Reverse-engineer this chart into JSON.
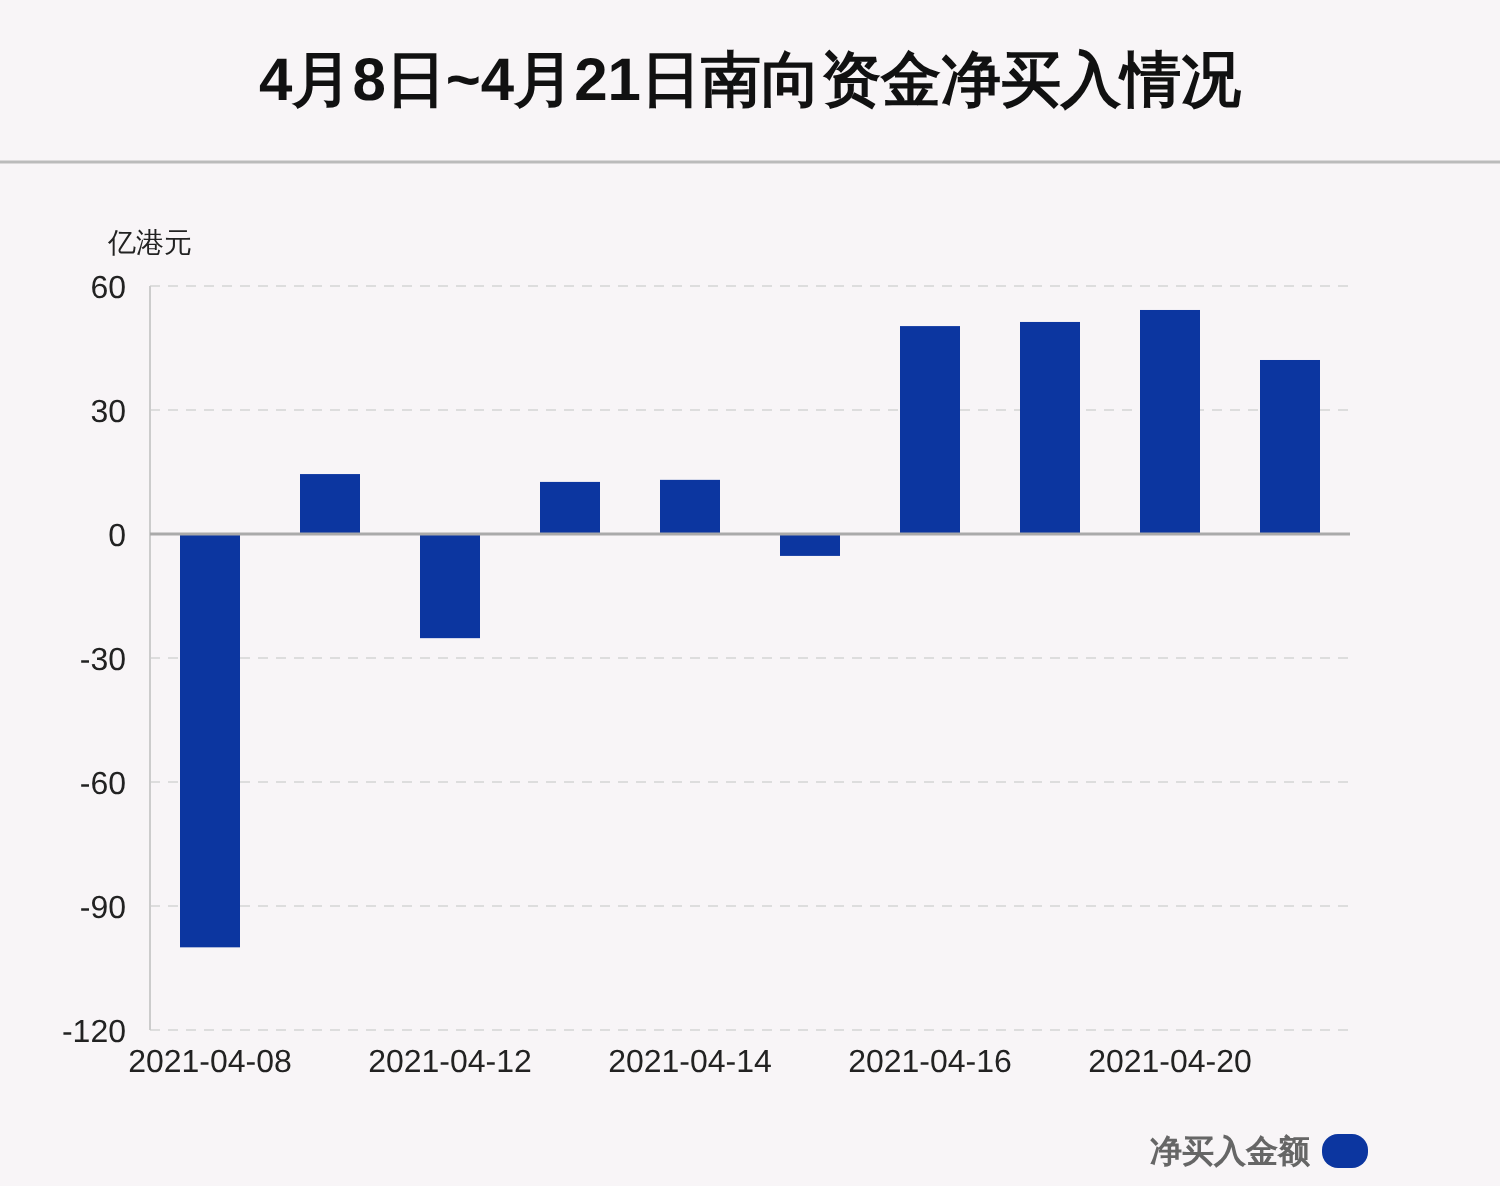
{
  "chart_data": {
    "type": "bar",
    "title": "4月8日~4月21日南向资金净买入情况",
    "ylabel": "亿港元",
    "categories": [
      "2021-04-08",
      null,
      "2021-04-12",
      null,
      "2021-04-14",
      null,
      "2021-04-16",
      null,
      "2021-04-20",
      null
    ],
    "series": [
      {
        "name": "净买入金额",
        "color": "#0c36a0",
        "values": [
          -100,
          14.5,
          -25.2,
          12.6,
          13.1,
          -5.3,
          50.3,
          51.3,
          54.2,
          42.1
        ]
      }
    ],
    "ylim": [
      -120,
      60
    ],
    "yticks": [
      -120,
      -90,
      -60,
      -30,
      0,
      30,
      60
    ],
    "grid": "y",
    "legend": "bottom right"
  }
}
